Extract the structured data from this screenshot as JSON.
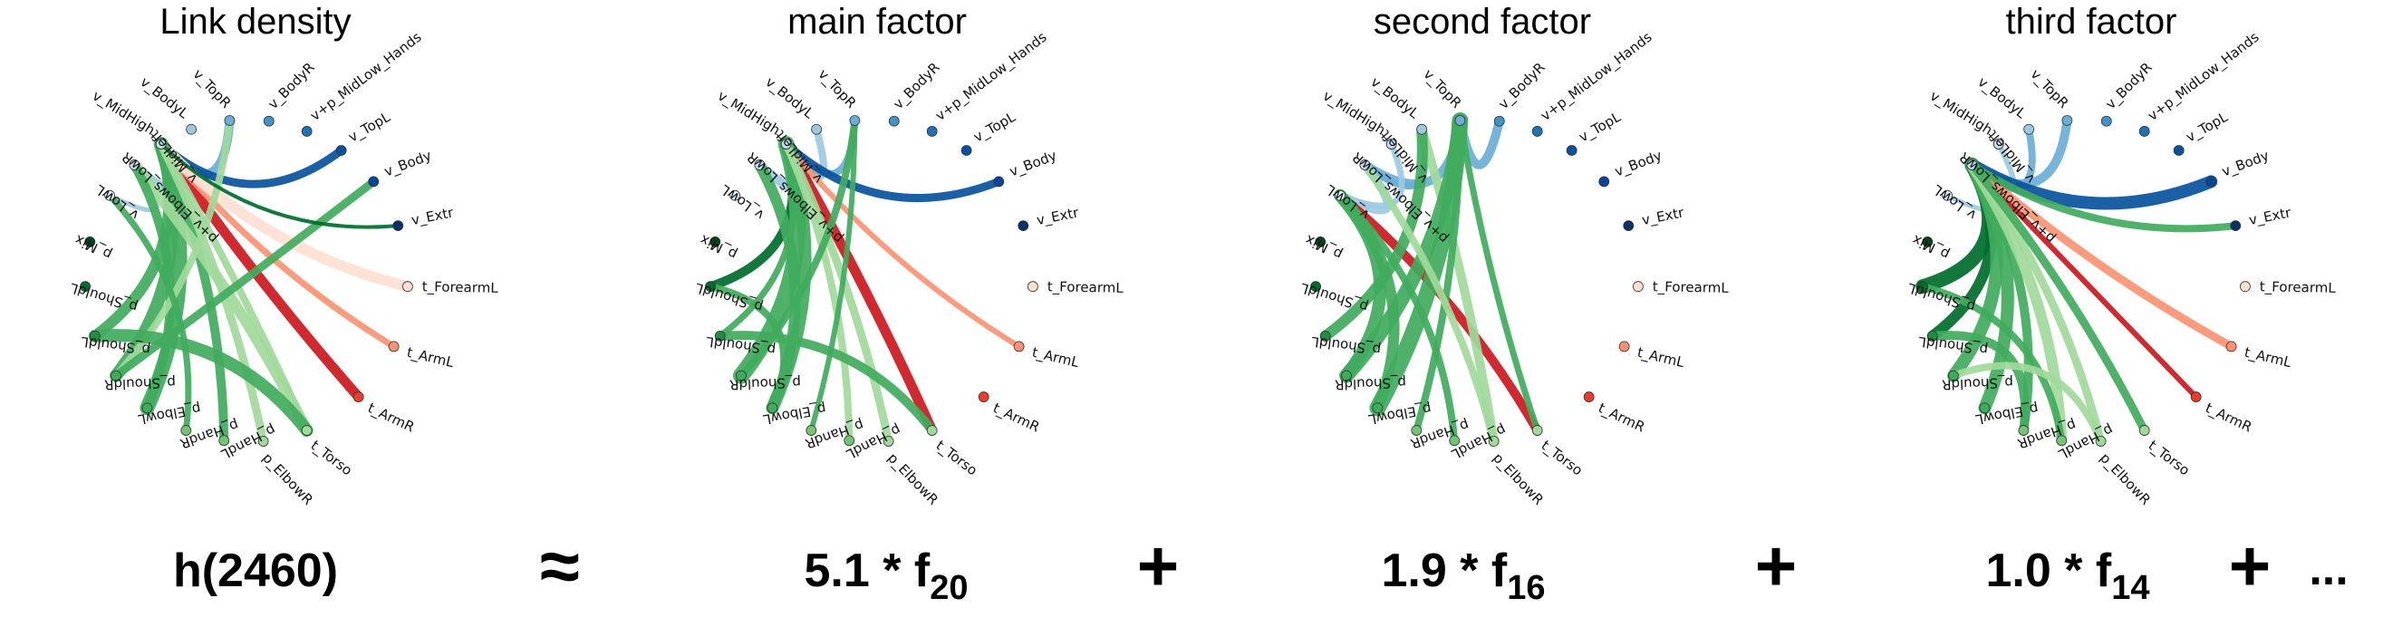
{
  "panels": [
    {
      "title": "Link density"
    },
    {
      "title": "main factor"
    },
    {
      "title": "second factor"
    },
    {
      "title": "third factor"
    }
  ],
  "nodes": [
    {
      "label": "v_MidHigh",
      "color": "#c6dbef"
    },
    {
      "label": "v_BodyL",
      "color": "#9ecae1"
    },
    {
      "label": "v_TopR",
      "color": "#6baed6"
    },
    {
      "label": "v_BodyR",
      "color": "#4292c6"
    },
    {
      "label": "v+p_MidLow_Hands",
      "color": "#2171b5"
    },
    {
      "label": "v_TopL",
      "color": "#08519c"
    },
    {
      "label": "v_Body",
      "color": "#08459a"
    },
    {
      "label": "v_Extr",
      "color": "#08306b"
    },
    {
      "label": "t_ForearmL",
      "color": "#fee0d2"
    },
    {
      "label": "t_ArmL",
      "color": "#fc9272"
    },
    {
      "label": "t_ArmR",
      "color": "#ef3b2c"
    },
    {
      "label": "t_Torso",
      "color": "#a1d99b"
    },
    {
      "label": "p_ElbowR",
      "color": "#a1d99b"
    },
    {
      "label": "p_HandL",
      "color": "#74c476"
    },
    {
      "label": "p_HandR",
      "color": "#74c476"
    },
    {
      "label": "p_ElbowL",
      "color": "#41ab5d"
    },
    {
      "label": "p_ShouldR",
      "color": "#41ab5d"
    },
    {
      "label": "p_ShouldL",
      "color": "#238b45"
    },
    {
      "label": "p_ShouldL",
      "color": "#006d2c"
    },
    {
      "label": "p_Mix",
      "color": "#00441b"
    },
    {
      "label": "v_LowL",
      "color": "#deebf7"
    },
    {
      "label": "p+v_Elbows_LowR",
      "color": "#c6dbef"
    },
    {
      "label": "v_MidLeft",
      "color": "#c6dbef"
    }
  ],
  "edge_colors": {
    "light_blue": "#9ecae1",
    "mid_blue": "#6baed6",
    "dark_blue": "#08519c",
    "green": "#41ab5d",
    "light_green": "#a1d99b",
    "dark_green": "#006d2c",
    "red": "#cb181d",
    "salmon": "#fc9272",
    "pale_red": "#fee0d2"
  },
  "equation": {
    "lhs": "h(2460)",
    "approx": "≈",
    "term1_coef": "5.1 * f",
    "term1_sub": "20",
    "plus1": "+",
    "term2_coef": "1.9 * f",
    "term2_sub": "16",
    "plus2": "+",
    "term3_coef": "1.0 * f",
    "term3_sub": "14",
    "plus3": "+",
    "ellipsis": "..."
  }
}
